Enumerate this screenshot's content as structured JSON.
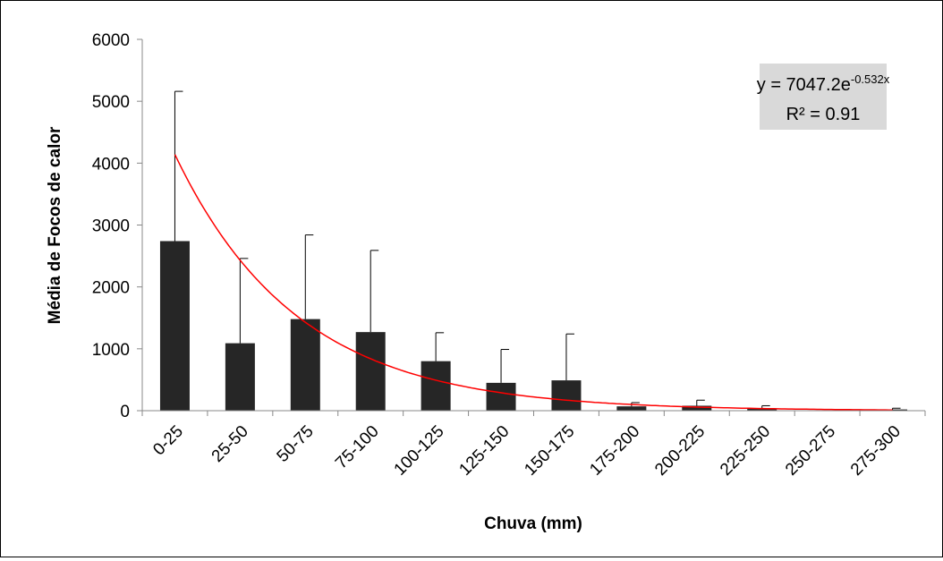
{
  "chart_data": {
    "type": "bar",
    "title": "",
    "xlabel": "Chuva (mm)",
    "ylabel": "Média de Focos de calor",
    "ylim": [
      0,
      6000
    ],
    "yticks": [
      "0",
      "1000",
      "2000",
      "3000",
      "4000",
      "5000",
      "6000"
    ],
    "grid": false,
    "bar_color": "#262626",
    "trend_color": "#ff0000",
    "categories": [
      "0-25",
      "25-50",
      "50-75",
      "75-100",
      "100-125",
      "125-150",
      "150-175",
      "175-200",
      "200-225",
      "225-250",
      "250-275",
      "275-300"
    ],
    "values": [
      2740,
      1090,
      1480,
      1270,
      800,
      450,
      490,
      70,
      80,
      30,
      0,
      20
    ],
    "error_upper": [
      5160,
      2460,
      2840,
      2590,
      1260,
      990,
      1240,
      130,
      170,
      80,
      0,
      40
    ],
    "trendline": {
      "type": "exponential",
      "a": 7047.2,
      "b": -0.532,
      "equation_base": "y = 7047.2e",
      "equation_exponent": "-0.532x",
      "r2_label": "R² = 0.91",
      "box_color": "#d9d9d9"
    }
  }
}
